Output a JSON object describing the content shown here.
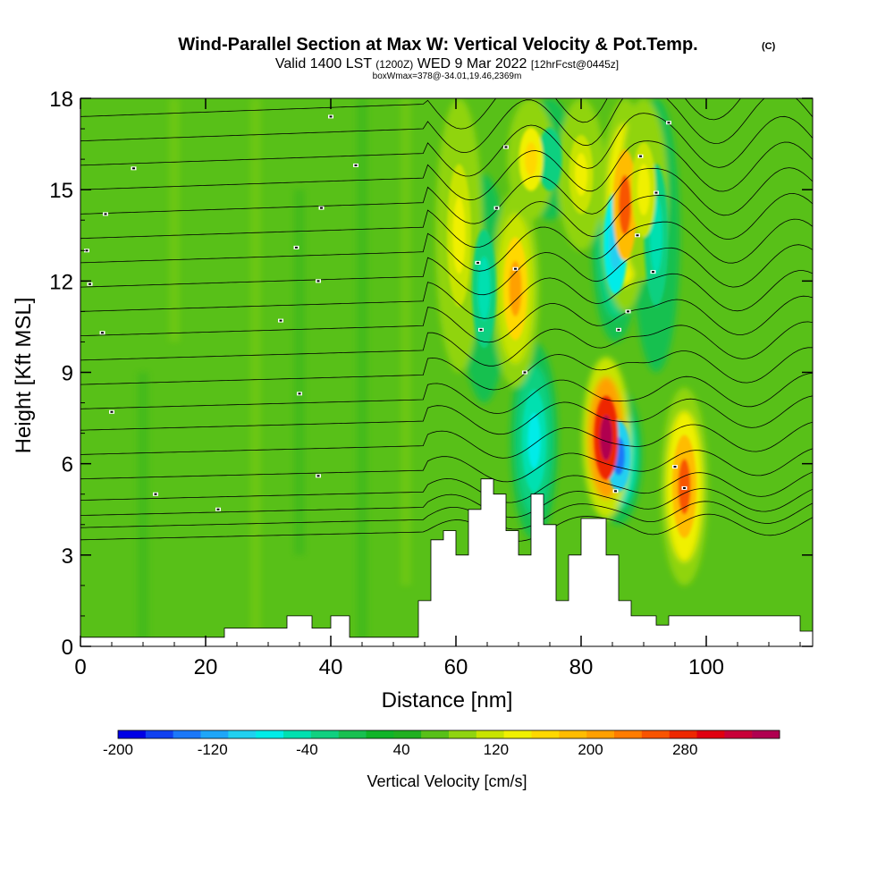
{
  "chart_data": {
    "type": "heatmap",
    "title": "Wind-Parallel Section at Max W: Vertical Velocity & Pot.Temp.",
    "title_mark": "(C)",
    "subtitle_parts": [
      "Valid 1400 LST",
      "(1200Z)",
      "WED 9 Mar 2022",
      "[12hrFcst@0445z]"
    ],
    "subtitle2": "boxWmax=378@-34.01,19.46,2369m",
    "xlabel": "Distance [nm]",
    "ylabel": "Height [Kft MSL]",
    "xlim": [
      0,
      117
    ],
    "ylim": [
      0,
      18
    ],
    "x_ticks": [
      0,
      20,
      40,
      60,
      80,
      100
    ],
    "x_tick_labels": [
      "0",
      "20",
      "40",
      "60",
      "80",
      "100"
    ],
    "y_ticks": [
      0,
      3,
      6,
      9,
      12,
      15,
      18
    ],
    "y_tick_labels": [
      "0",
      "3",
      "6",
      "9",
      "12",
      "15",
      "18"
    ],
    "colorbar": {
      "label": "Vertical Velocity [cm/s]",
      "min": -200,
      "max": 360,
      "step": 20,
      "tick_values": [
        -200,
        -120,
        -40,
        40,
        120,
        200,
        280
      ],
      "tick_labels": [
        "-200",
        "-120",
        "-40",
        "40",
        "120",
        "200",
        "280"
      ],
      "colors": [
        "#0000e6",
        "#1040f0",
        "#1c78f8",
        "#1ea6f8",
        "#20d0f0",
        "#00ece8",
        "#00e0b0",
        "#10d080",
        "#18c050",
        "#10b428",
        "#20b020",
        "#58c018",
        "#90d410",
        "#c8e400",
        "#f0f000",
        "#ffd800",
        "#ffbc00",
        "#ffa000",
        "#ff7c00",
        "#f85400",
        "#ee2800",
        "#e00010",
        "#c80038",
        "#b00050"
      ]
    },
    "background_value": 20,
    "updraft_cores": [
      {
        "x": 84,
        "ybottom": 4.2,
        "ytop": 9.5,
        "value": 280
      },
      {
        "x": 87,
        "ybottom": 11.0,
        "ytop": 18.0,
        "value": 180
      },
      {
        "x": 96.5,
        "ybottom": 2.0,
        "ytop": 8.5,
        "value": 180
      },
      {
        "x": 69.5,
        "ybottom": 8.5,
        "ytop": 15.0,
        "value": 140
      },
      {
        "x": 60.5,
        "ybottom": 9.0,
        "ytop": 18.0,
        "value": 90
      },
      {
        "x": 72,
        "ybottom": 14.0,
        "ytop": 18.0,
        "value": 110
      },
      {
        "x": 80,
        "ybottom": 13.0,
        "ytop": 18.0,
        "value": 80
      },
      {
        "x": 90,
        "ybottom": 12.0,
        "ytop": 18.0,
        "value": 90
      }
    ],
    "downdraft_cores": [
      {
        "x": 86,
        "ybottom": 4.0,
        "ytop": 8.5,
        "value": -150
      },
      {
        "x": 85.5,
        "ybottom": 10.0,
        "ytop": 16.5,
        "value": -110
      },
      {
        "x": 72.5,
        "ybottom": 3.5,
        "ytop": 10.0,
        "value": -90
      },
      {
        "x": 64.5,
        "ybottom": 8.0,
        "ytop": 15.5,
        "value": -70
      },
      {
        "x": 92,
        "ybottom": 9.0,
        "ytop": 18.0,
        "value": -70
      },
      {
        "x": 75,
        "ybottom": 14.0,
        "ytop": 18.0,
        "value": -60
      }
    ],
    "terrain": {
      "x": [
        0,
        20,
        23,
        31,
        33,
        37,
        40,
        43,
        48,
        54,
        56,
        58,
        60,
        62,
        64,
        66,
        68,
        70,
        72,
        74,
        76,
        78,
        80,
        82,
        84,
        86,
        88,
        90,
        92,
        94,
        96,
        98,
        110,
        115,
        117
      ],
      "height": [
        0.3,
        0.3,
        0.6,
        0.6,
        1.0,
        0.6,
        1.0,
        0.3,
        0.3,
        1.5,
        3.5,
        3.8,
        3.0,
        4.5,
        5.5,
        5.0,
        3.8,
        3.0,
        5.0,
        4.0,
        1.5,
        3.0,
        4.2,
        4.2,
        3.0,
        1.5,
        1.0,
        1.0,
        0.7,
        1.0,
        1.0,
        1.0,
        1.0,
        0.5,
        0.5
      ]
    },
    "isentrope_heights_at_x0": [
      3.5,
      3.9,
      4.3,
      4.8,
      5.5,
      6.3,
      7.1,
      7.8,
      8.6,
      9.4,
      10.2,
      11.0,
      11.8,
      12.6,
      13.4,
      14.2,
      15.0,
      15.8,
      16.6,
      17.4
    ],
    "isentrope_labels": [
      {
        "x": 5,
        "y": 7.7
      },
      {
        "x": 12,
        "y": 5.0
      },
      {
        "x": 22,
        "y": 4.5
      },
      {
        "x": 38,
        "y": 5.6
      },
      {
        "x": 35,
        "y": 8.3
      },
      {
        "x": 32,
        "y": 10.7
      },
      {
        "x": 3.5,
        "y": 10.3
      },
      {
        "x": 1.5,
        "y": 11.9
      },
      {
        "x": 38,
        "y": 12.0
      },
      {
        "x": 34.5,
        "y": 13.1
      },
      {
        "x": 1,
        "y": 13.0
      },
      {
        "x": 4,
        "y": 14.2
      },
      {
        "x": 38.5,
        "y": 14.4
      },
      {
        "x": 8.5,
        "y": 15.7
      },
      {
        "x": 44,
        "y": 15.8
      },
      {
        "x": 40,
        "y": 17.4
      },
      {
        "x": 63.5,
        "y": 12.6
      },
      {
        "x": 66.5,
        "y": 14.4
      },
      {
        "x": 68,
        "y": 16.4
      },
      {
        "x": 69.5,
        "y": 12.4
      },
      {
        "x": 64,
        "y": 10.4
      },
      {
        "x": 71,
        "y": 9.0
      },
      {
        "x": 86,
        "y": 10.4
      },
      {
        "x": 87.5,
        "y": 11.0
      },
      {
        "x": 85.5,
        "y": 5.1
      },
      {
        "x": 95,
        "y": 5.9
      },
      {
        "x": 96.5,
        "y": 5.2
      },
      {
        "x": 91.5,
        "y": 12.3
      },
      {
        "x": 89,
        "y": 13.5
      },
      {
        "x": 92,
        "y": 14.9
      },
      {
        "x": 89.5,
        "y": 16.1
      },
      {
        "x": 94,
        "y": 17.2
      }
    ]
  }
}
